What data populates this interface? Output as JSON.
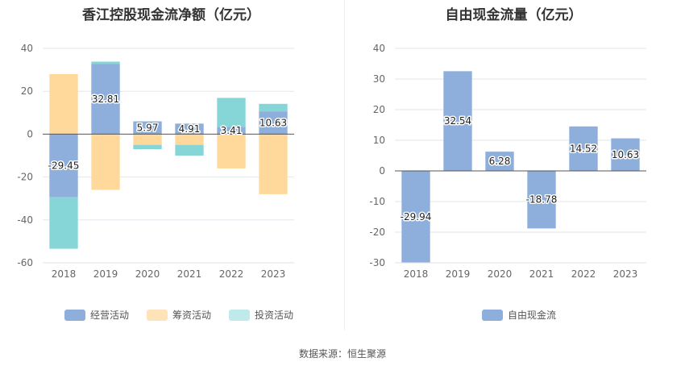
{
  "source": "数据来源：恒生聚源",
  "colors": {
    "operating": "#8eaedc",
    "financing": "#ffd89b",
    "investing": "#86d6d8",
    "fcf": "#8eaedc",
    "investing_legend": "#bfe9ea"
  },
  "chart_data": [
    {
      "type": "bar",
      "stacked": true,
      "title": "香江控股现金流净额（亿元）",
      "categories": [
        "2018",
        "2019",
        "2020",
        "2021",
        "2022",
        "2023"
      ],
      "ylim": [
        -60,
        40
      ],
      "yticks": [
        -60,
        -40,
        -20,
        0,
        20,
        40
      ],
      "grid": true,
      "legend_position": "bottom",
      "series": [
        {
          "name": "经营活动",
          "values": [
            -29.45,
            32.81,
            5.97,
            4.91,
            3.41,
            10.63
          ]
        },
        {
          "name": "筹资活动",
          "values": [
            28.0,
            -26.0,
            -5.0,
            -5.0,
            -16.0,
            -28.0
          ]
        },
        {
          "name": "投资活动",
          "values": [
            -24.0,
            1.0,
            -2.0,
            -5.0,
            13.5,
            3.5
          ]
        }
      ],
      "data_labels": [
        "-29.45",
        "32.81",
        "5.97",
        "4.91",
        "3.41",
        "10.63"
      ]
    },
    {
      "type": "bar",
      "title": "自由现金流量（亿元）",
      "categories": [
        "2018",
        "2019",
        "2020",
        "2021",
        "2022",
        "2023"
      ],
      "ylim": [
        -30,
        40
      ],
      "yticks": [
        -30,
        -20,
        -10,
        0,
        10,
        20,
        30,
        40
      ],
      "grid": true,
      "legend_position": "bottom",
      "series": [
        {
          "name": "自由现金流",
          "values": [
            -29.94,
            32.54,
            6.28,
            -18.78,
            14.52,
            10.63
          ]
        }
      ],
      "data_labels": [
        "-29.94",
        "32.54",
        "6.28",
        "-18.78",
        "14.52",
        "10.63"
      ]
    }
  ]
}
